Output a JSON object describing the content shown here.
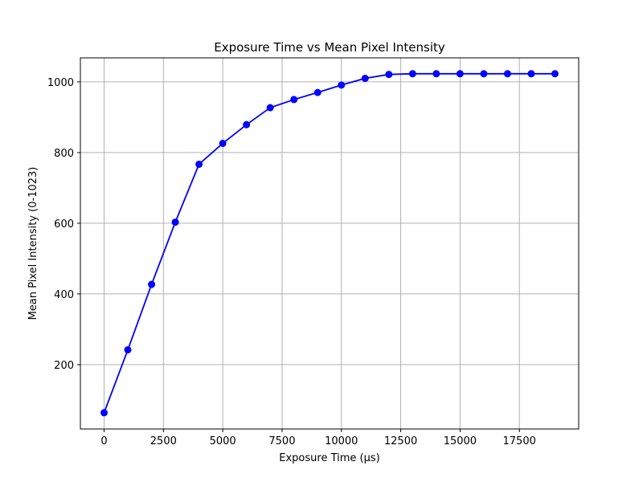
{
  "chart_data": {
    "type": "line",
    "title": "Exposure Time vs Mean Pixel Intensity",
    "xlabel": "Exposure Time (µs)",
    "ylabel": "Mean Pixel Intensity (0-1023)",
    "xlim": [
      -1000,
      20000
    ],
    "ylim": [
      18,
      1068
    ],
    "xticks": [
      0,
      2500,
      5000,
      7500,
      10000,
      12500,
      15000,
      17500
    ],
    "yticks": [
      200,
      400,
      600,
      800,
      1000
    ],
    "grid": true,
    "series": [
      {
        "color": "#0000ff",
        "marker": "circle",
        "x": [
          0,
          1000,
          2000,
          3000,
          4000,
          5000,
          6000,
          7000,
          8000,
          9000,
          10000,
          11000,
          12000,
          13000,
          14000,
          15000,
          16000,
          17000,
          18000,
          19000
        ],
        "y": [
          64,
          242,
          427,
          603,
          767,
          826,
          879,
          927,
          950,
          970,
          991,
          1010,
          1021,
          1023,
          1023,
          1023,
          1023,
          1023,
          1023,
          1023
        ]
      }
    ]
  },
  "colors": {
    "line": "#0000ff",
    "grid": "#b0b0b0",
    "axes": "#000000"
  }
}
